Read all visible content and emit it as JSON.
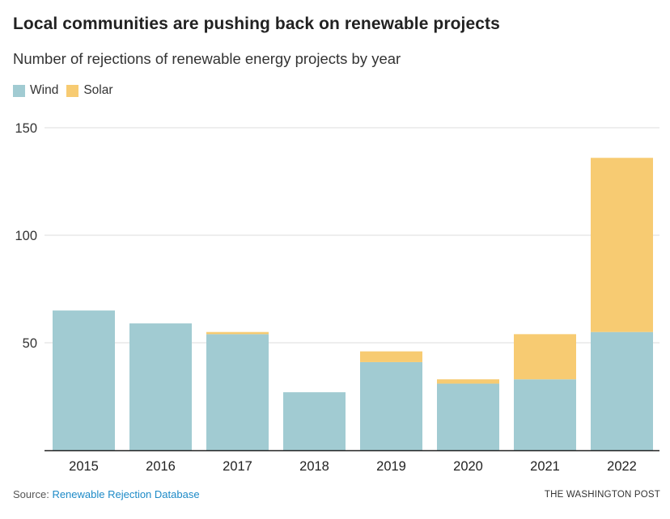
{
  "header": {
    "title": "Local communities are pushing back on renewable projects",
    "subtitle": "Number of rejections of renewable energy projects by year"
  },
  "legend": [
    {
      "label": "Wind",
      "color": "#a1cbd2"
    },
    {
      "label": "Solar",
      "color": "#f7cb72"
    }
  ],
  "footer": {
    "source_prefix": "Source:",
    "source_link": "Renewable Rejection Database",
    "credit": "THE WASHINGTON POST"
  },
  "chart_data": {
    "type": "bar",
    "stacked": true,
    "title": "Local communities are pushing back on renewable projects",
    "subtitle": "Number of rejections of renewable energy projects by year",
    "xlabel": "",
    "ylabel": "",
    "categories": [
      "2015",
      "2016",
      "2017",
      "2018",
      "2019",
      "2020",
      "2021",
      "2022"
    ],
    "series": [
      {
        "name": "Wind",
        "color": "#a1cbd2",
        "values": [
          65,
          59,
          54,
          27,
          41,
          31,
          33,
          55
        ]
      },
      {
        "name": "Solar",
        "color": "#f7cb72",
        "values": [
          0,
          0,
          1,
          0,
          5,
          2,
          21,
          81
        ]
      }
    ],
    "ylim": [
      0,
      150
    ],
    "yticks": [
      50,
      100,
      150
    ],
    "grid": true,
    "legend_position": "top-left"
  }
}
